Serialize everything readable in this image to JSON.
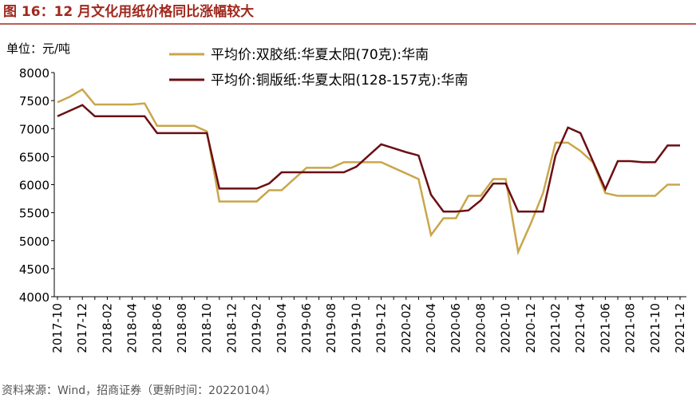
{
  "chart_data": {
    "type": "line",
    "title": "图 16：12 月文化用纸价格同比涨幅较大",
    "y_label": "单位：元/吨",
    "source": "资料来源：Wind，招商证券（更新时间：20220104）",
    "categories": [
      "2017-10",
      null,
      "2017-12",
      null,
      "2018-02",
      null,
      "2018-04",
      null,
      "2018-06",
      null,
      "2018-08",
      null,
      "2018-10",
      null,
      "2018-12",
      null,
      "2019-02",
      null,
      "2019-04",
      null,
      "2019-06",
      null,
      "2019-08",
      null,
      "2019-10",
      null,
      "2019-12",
      null,
      "2020-02",
      null,
      "2020-04",
      null,
      "2020-06",
      null,
      "2020-08",
      null,
      "2020-10",
      null,
      "2020-12",
      null,
      "2021-02",
      null,
      "2021-04",
      null,
      "2021-06",
      null,
      "2021-08",
      null,
      "2021-10",
      null,
      "2021-12"
    ],
    "series": [
      {
        "name": "平均价:双胶纸:华夏太阳(70克):华南",
        "color": "#c9a64a",
        "values": [
          7470,
          7570,
          7700,
          7430,
          7430,
          7430,
          7430,
          7450,
          7050,
          7050,
          7050,
          7050,
          6950,
          5700,
          5700,
          5700,
          5700,
          5900,
          5900,
          6100,
          6300,
          6300,
          6300,
          6400,
          6400,
          6400,
          6400,
          6300,
          6200,
          6100,
          5100,
          5400,
          5400,
          5800,
          5800,
          6100,
          6100,
          4800,
          5300,
          5850,
          6750,
          6750,
          6600,
          6400,
          5850,
          5800,
          5800,
          5800,
          5800,
          6000,
          6000
        ]
      },
      {
        "name": "平均价:铜版纸:华夏太阳(128-157克):华南",
        "color": "#6b0f14",
        "values": [
          7220,
          7320,
          7420,
          7220,
          7220,
          7220,
          7220,
          7220,
          6920,
          6920,
          6920,
          6920,
          6920,
          5930,
          5930,
          5930,
          5930,
          6020,
          6220,
          6220,
          6220,
          6220,
          6220,
          6220,
          6320,
          6520,
          6720,
          6650,
          6580,
          6520,
          5820,
          5520,
          5520,
          5540,
          5720,
          6020,
          6020,
          5520,
          5520,
          5520,
          6520,
          7020,
          6920,
          6420,
          5920,
          6420,
          6420,
          6400,
          6400,
          6700,
          6700
        ]
      }
    ],
    "ylim": [
      4000,
      8000
    ],
    "yticks": [
      4000,
      4500,
      5000,
      5500,
      6000,
      6500,
      7000,
      7500,
      8000
    ]
  }
}
